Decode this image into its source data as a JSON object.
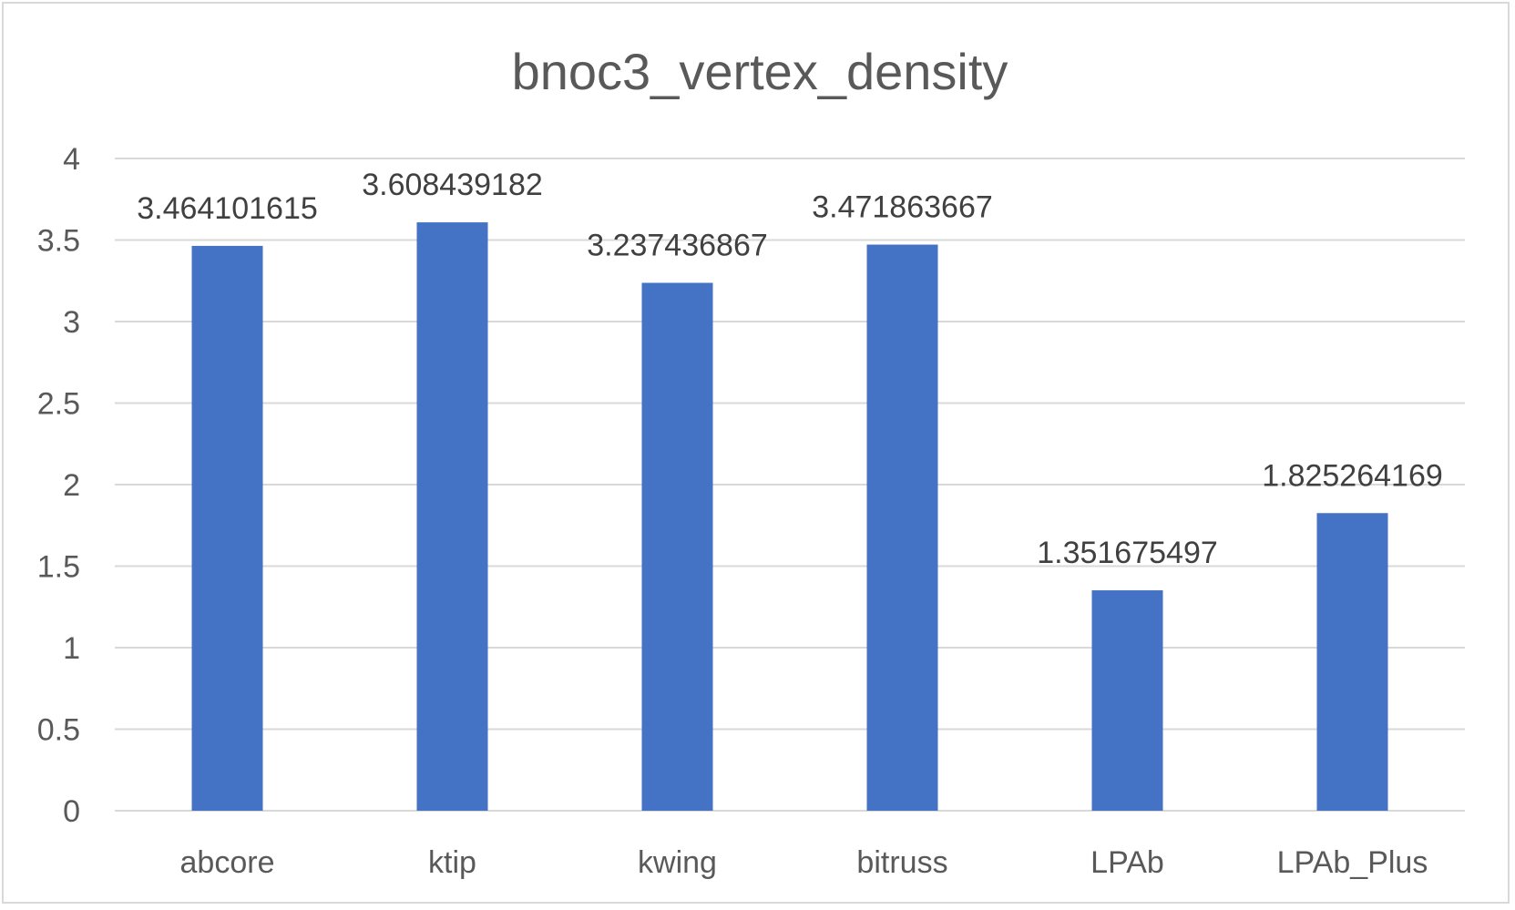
{
  "chart_data": {
    "type": "bar",
    "title": "bnoc3_vertex_density",
    "categories": [
      "abcore",
      "ktip",
      "kwing",
      "bitruss",
      "LPAb",
      "LPAb_Plus"
    ],
    "values": [
      3.464101615,
      3.608439182,
      3.237436867,
      3.471863667,
      1.351675497,
      1.825264169
    ],
    "data_labels": [
      "3.464101615",
      "3.608439182",
      "3.237436867",
      "3.471863667",
      "1.351675497",
      "1.825264169"
    ],
    "xlabel": "",
    "ylabel": "",
    "ylim": [
      0,
      4
    ],
    "yticks": [
      0,
      0.5,
      1,
      1.5,
      2,
      2.5,
      3,
      3.5,
      4
    ],
    "ytick_labels": [
      "0",
      "0.5",
      "1",
      "1.5",
      "2",
      "2.5",
      "3",
      "3.5",
      "4"
    ],
    "grid": true,
    "legend": "none",
    "colors": {
      "bar": "#4472C4",
      "grid": "#d9d9d9",
      "title": "#595959",
      "tick_label": "#595959",
      "data_label": "#404040",
      "frame": "#d9d9d9"
    }
  }
}
